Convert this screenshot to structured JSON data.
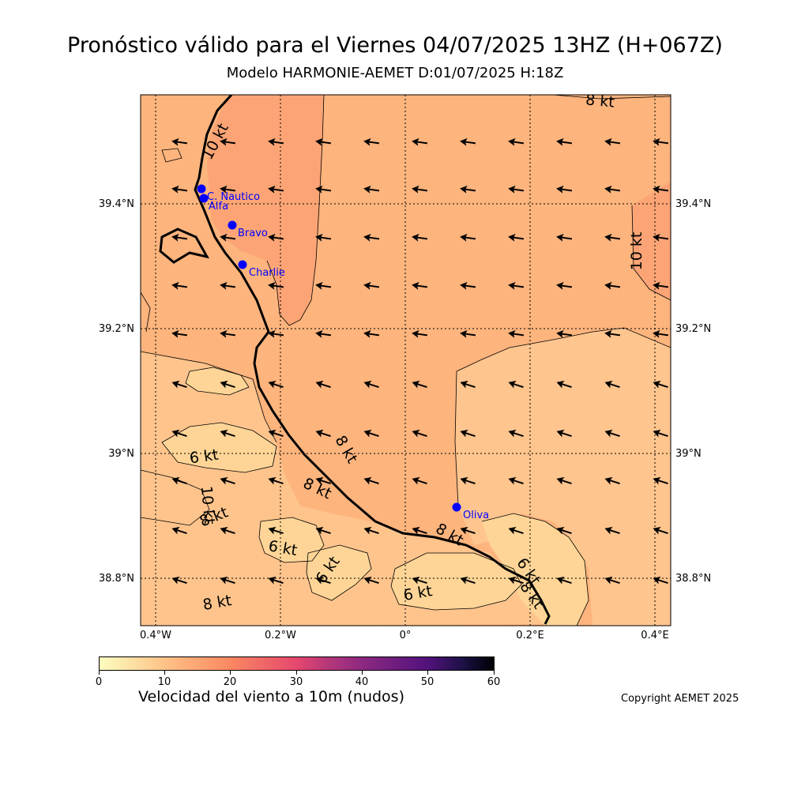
{
  "header": {
    "title": "Pronóstico válido para el Viernes 04/07/2025 13HZ (H+067Z)",
    "subtitle": "Modelo HARMONIE-AEMET D:01/07/2025 H:18Z"
  },
  "map": {
    "extent": {
      "lon_min": -0.425,
      "lon_max": 0.425,
      "lat_min": 38.72,
      "lat_max": 39.57
    },
    "lon_ticks": [
      {
        "value": -0.4,
        "label": "0.4°W"
      },
      {
        "value": -0.2,
        "label": "0.2°W"
      },
      {
        "value": 0.0,
        "label": "0°"
      },
      {
        "value": 0.2,
        "label": "0.2°E"
      },
      {
        "value": 0.4,
        "label": "0.4°E"
      }
    ],
    "lat_ticks": [
      {
        "value": 39.4,
        "label": "39.4°N"
      },
      {
        "value": 39.2,
        "label": "39.2°N"
      },
      {
        "value": 39.0,
        "label": "39°N"
      },
      {
        "value": 38.8,
        "label": "38.8°N"
      }
    ],
    "stations": [
      {
        "name": "C. Nautico",
        "lon": -0.328,
        "lat": 39.422
      },
      {
        "name": "Alfa",
        "lon": -0.322,
        "lat": 39.408
      },
      {
        "name": "Bravo",
        "lon": -0.277,
        "lat": 39.365
      },
      {
        "name": "Charlie",
        "lon": -0.26,
        "lat": 39.3
      },
      {
        "name": "Oliva",
        "lon": 0.084,
        "lat": 38.913
      }
    ],
    "contour_labels": [
      "10 kt",
      "8 kt",
      "10 kt",
      "8 kt",
      "6 kt",
      "8 kt",
      "10 kt",
      "8 kt",
      "6 kt",
      "6 kt",
      "6 kt",
      "8 kt",
      "8 kt",
      "6 kt",
      "8 kt"
    ],
    "wind_direction": "from east-southeast",
    "station_color": "#0000ff",
    "coast_color": "#000000"
  },
  "colorbar": {
    "label": "Velocidad del viento a 10m (nudos)",
    "min": 0,
    "max": 60,
    "ticks": [
      "0",
      "10",
      "20",
      "30",
      "40",
      "50",
      "60"
    ]
  },
  "footer": {
    "copyright": "Copyright AEMET 2025"
  }
}
